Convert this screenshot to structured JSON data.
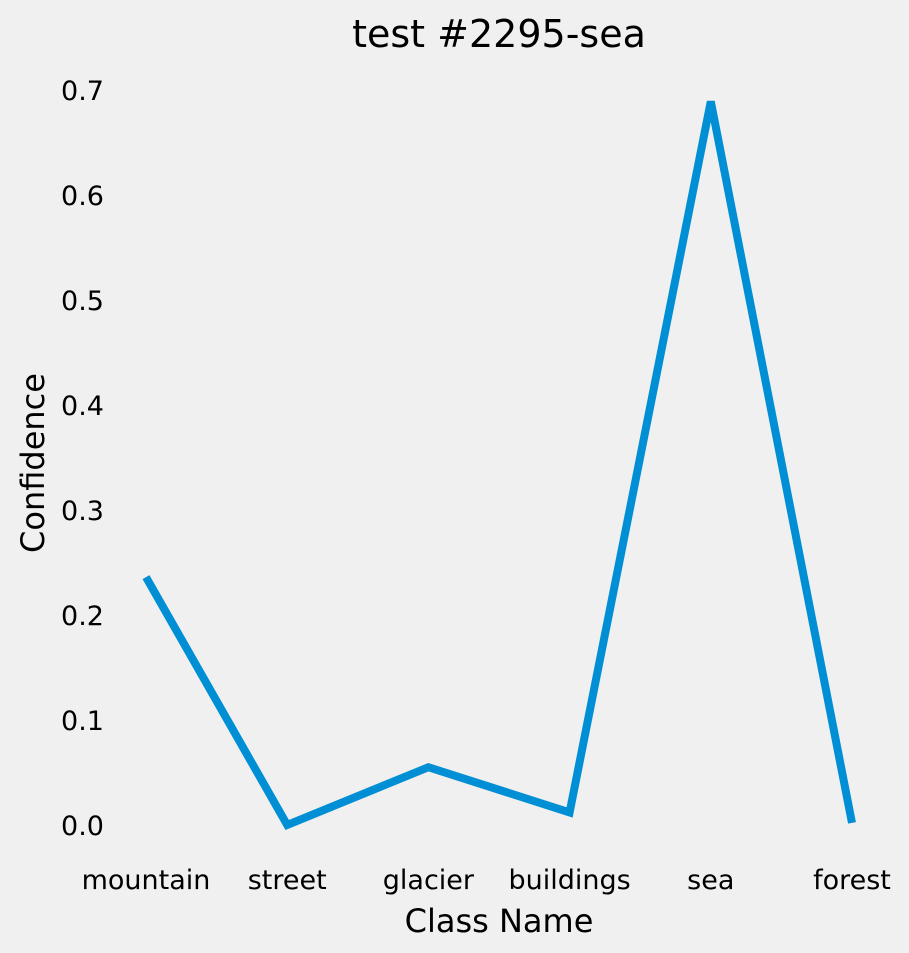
{
  "chart_data": {
    "type": "line",
    "title": "test #2295-sea",
    "xlabel": "Class Name",
    "ylabel": "Confidence",
    "categories": [
      "mountain",
      "street",
      "glacier",
      "buildings",
      "sea",
      "forest"
    ],
    "values": [
      0.237,
      0.001,
      0.056,
      0.013,
      0.69,
      0.003
    ],
    "ylim": [
      -0.04,
      0.72
    ],
    "yticks": [
      "0.0",
      "0.1",
      "0.2",
      "0.3",
      "0.4",
      "0.5",
      "0.6",
      "0.7"
    ],
    "grid": false,
    "line_color": "#008fd5",
    "background_color": "#f0f0f0"
  }
}
